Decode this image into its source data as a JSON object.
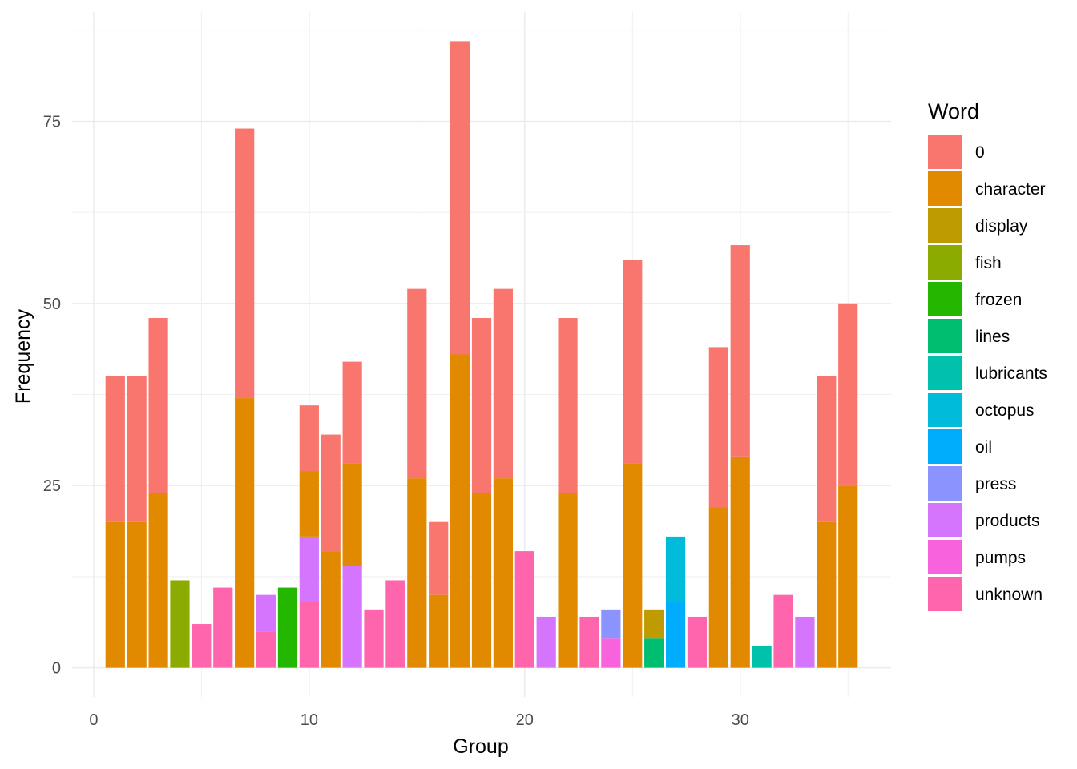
{
  "chart_data": {
    "type": "bar",
    "stacked": true,
    "xlabel": "Group",
    "ylabel": "Frequency",
    "xlim": [
      -1,
      37
    ],
    "ylim": [
      -4,
      90
    ],
    "x_ticks": [
      0,
      10,
      20,
      30
    ],
    "y_ticks": [
      0,
      25,
      50,
      75
    ],
    "grid": true,
    "legend": {
      "title": "Word",
      "placement": "right",
      "entries": [
        {
          "word": "0",
          "color": "#F8766D"
        },
        {
          "word": "character",
          "color": "#E18A00"
        },
        {
          "word": "display",
          "color": "#BE9C00"
        },
        {
          "word": "fish",
          "color": "#8CAB00"
        },
        {
          "word": "frozen",
          "color": "#24B700"
        },
        {
          "word": "lines",
          "color": "#00BE70"
        },
        {
          "word": "lubricants",
          "color": "#00C1AB"
        },
        {
          "word": "octopus",
          "color": "#00BBDA"
        },
        {
          "word": "oil",
          "color": "#00ACFC"
        },
        {
          "word": "press",
          "color": "#8B93FF"
        },
        {
          "word": "products",
          "color": "#D575FE"
        },
        {
          "word": "pumps",
          "color": "#F962DD"
        },
        {
          "word": "unknown",
          "color": "#FF65AC"
        }
      ]
    },
    "bars": [
      {
        "group": 1,
        "segments": [
          {
            "word": "character",
            "value": 20
          },
          {
            "word": "0",
            "value": 20
          }
        ]
      },
      {
        "group": 2,
        "segments": [
          {
            "word": "character",
            "value": 20
          },
          {
            "word": "0",
            "value": 20
          }
        ]
      },
      {
        "group": 3,
        "segments": [
          {
            "word": "character",
            "value": 24
          },
          {
            "word": "0",
            "value": 24
          }
        ]
      },
      {
        "group": 4,
        "segments": [
          {
            "word": "fish",
            "value": 12
          }
        ]
      },
      {
        "group": 5,
        "segments": [
          {
            "word": "unknown",
            "value": 6
          }
        ]
      },
      {
        "group": 6,
        "segments": [
          {
            "word": "unknown",
            "value": 11
          }
        ]
      },
      {
        "group": 7,
        "segments": [
          {
            "word": "character",
            "value": 37
          },
          {
            "word": "0",
            "value": 37
          }
        ]
      },
      {
        "group": 8,
        "segments": [
          {
            "word": "unknown",
            "value": 5
          },
          {
            "word": "products",
            "value": 5
          }
        ]
      },
      {
        "group": 9,
        "segments": [
          {
            "word": "frozen",
            "value": 11
          }
        ]
      },
      {
        "group": 10,
        "segments": [
          {
            "word": "unknown",
            "value": 9
          },
          {
            "word": "products",
            "value": 9
          },
          {
            "word": "character",
            "value": 9
          },
          {
            "word": "0",
            "value": 9
          }
        ]
      },
      {
        "group": 11,
        "segments": [
          {
            "word": "character",
            "value": 16
          },
          {
            "word": "0",
            "value": 16
          }
        ]
      },
      {
        "group": 12,
        "segments": [
          {
            "word": "products",
            "value": 14
          },
          {
            "word": "character",
            "value": 14
          },
          {
            "word": "0",
            "value": 14
          }
        ]
      },
      {
        "group": 13,
        "segments": [
          {
            "word": "unknown",
            "value": 8
          }
        ]
      },
      {
        "group": 14,
        "segments": [
          {
            "word": "unknown",
            "value": 12
          }
        ]
      },
      {
        "group": 15,
        "segments": [
          {
            "word": "character",
            "value": 26
          },
          {
            "word": "0",
            "value": 26
          }
        ]
      },
      {
        "group": 16,
        "segments": [
          {
            "word": "character",
            "value": 10
          },
          {
            "word": "0",
            "value": 10
          }
        ]
      },
      {
        "group": 17,
        "segments": [
          {
            "word": "character",
            "value": 43
          },
          {
            "word": "0",
            "value": 43
          }
        ]
      },
      {
        "group": 18,
        "segments": [
          {
            "word": "character",
            "value": 24
          },
          {
            "word": "0",
            "value": 24
          }
        ]
      },
      {
        "group": 19,
        "segments": [
          {
            "word": "character",
            "value": 26
          },
          {
            "word": "0",
            "value": 26
          }
        ]
      },
      {
        "group": 20,
        "segments": [
          {
            "word": "unknown",
            "value": 16
          }
        ]
      },
      {
        "group": 21,
        "segments": [
          {
            "word": "products",
            "value": 7
          }
        ]
      },
      {
        "group": 22,
        "segments": [
          {
            "word": "character",
            "value": 24
          },
          {
            "word": "0",
            "value": 24
          }
        ]
      },
      {
        "group": 23,
        "segments": [
          {
            "word": "unknown",
            "value": 7
          }
        ]
      },
      {
        "group": 24,
        "segments": [
          {
            "word": "pumps",
            "value": 4
          },
          {
            "word": "press",
            "value": 4
          }
        ]
      },
      {
        "group": 25,
        "segments": [
          {
            "word": "character",
            "value": 28
          },
          {
            "word": "0",
            "value": 28
          }
        ]
      },
      {
        "group": 26,
        "segments": [
          {
            "word": "lines",
            "value": 4
          },
          {
            "word": "display",
            "value": 4
          }
        ]
      },
      {
        "group": 27,
        "segments": [
          {
            "word": "oil",
            "value": 9
          },
          {
            "word": "octopus",
            "value": 9
          }
        ]
      },
      {
        "group": 28,
        "segments": [
          {
            "word": "unknown",
            "value": 7
          }
        ]
      },
      {
        "group": 29,
        "segments": [
          {
            "word": "character",
            "value": 22
          },
          {
            "word": "0",
            "value": 22
          }
        ]
      },
      {
        "group": 30,
        "segments": [
          {
            "word": "character",
            "value": 29
          },
          {
            "word": "0",
            "value": 29
          }
        ]
      },
      {
        "group": 31,
        "segments": [
          {
            "word": "lubricants",
            "value": 3
          }
        ]
      },
      {
        "group": 32,
        "segments": [
          {
            "word": "unknown",
            "value": 10
          }
        ]
      },
      {
        "group": 33,
        "segments": [
          {
            "word": "products",
            "value": 7
          }
        ]
      },
      {
        "group": 34,
        "segments": [
          {
            "word": "character",
            "value": 20
          },
          {
            "word": "0",
            "value": 20
          }
        ]
      },
      {
        "group": 35,
        "segments": [
          {
            "word": "character",
            "value": 25
          },
          {
            "word": "0",
            "value": 25
          }
        ]
      }
    ]
  }
}
